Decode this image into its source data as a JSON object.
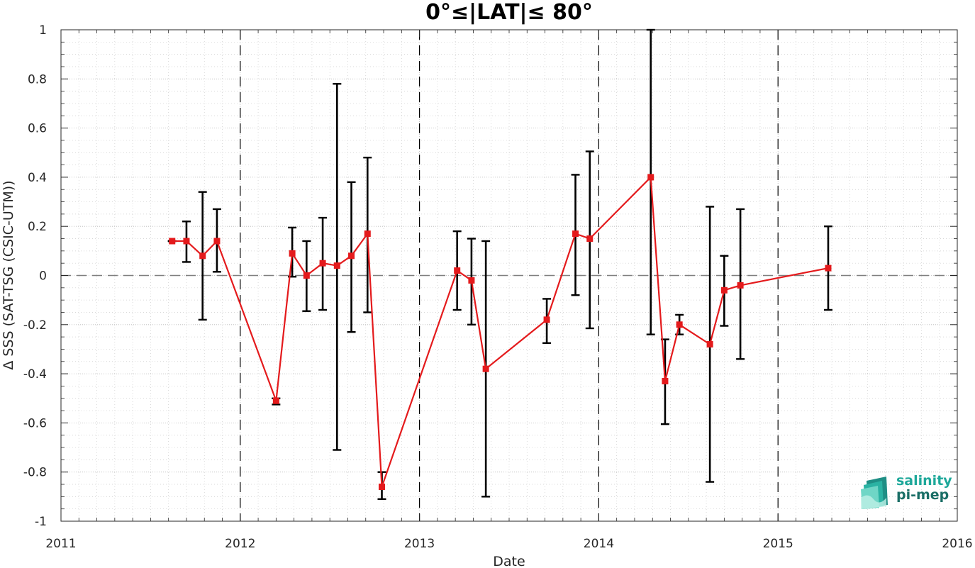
{
  "chart_data": {
    "type": "line",
    "title": "0°≤|LAT|≤ 80°",
    "xlabel": "Date",
    "ylabel": "Δ SSS (SAT-TSG (CSIC-UTM))",
    "xlim": [
      2011,
      2016
    ],
    "ylim": [
      -1,
      1
    ],
    "x_ticks": [
      "2011",
      "2012",
      "2013",
      "2014",
      "2015",
      "2016"
    ],
    "y_ticks": [
      "-1",
      "-0.8",
      "-0.6",
      "-0.4",
      "-0.2",
      "0",
      "0.2",
      "0.4",
      "0.6",
      "0.8",
      "1"
    ],
    "grid": true,
    "year_separators": [
      2012,
      2013,
      2014,
      2015
    ],
    "reference_line_y": 0,
    "series": [
      {
        "color": "#e41a1c",
        "error_bar_color": "#000000",
        "points": [
          {
            "x": 2011.62,
            "y": 0.14,
            "low": 0.14,
            "high": 0.14
          },
          {
            "x": 2011.7,
            "y": 0.14,
            "low": 0.055,
            "high": 0.22
          },
          {
            "x": 2011.79,
            "y": 0.08,
            "low": -0.18,
            "high": 0.34
          },
          {
            "x": 2011.87,
            "y": 0.14,
            "low": 0.015,
            "high": 0.27
          },
          {
            "x": 2012.2,
            "y": -0.51,
            "low": -0.525,
            "high": -0.5
          },
          {
            "x": 2012.29,
            "y": 0.09,
            "low": -0.005,
            "high": 0.195
          },
          {
            "x": 2012.37,
            "y": 0.0,
            "low": -0.145,
            "high": 0.14
          },
          {
            "x": 2012.46,
            "y": 0.05,
            "low": -0.14,
            "high": 0.235
          },
          {
            "x": 2012.54,
            "y": 0.04,
            "low": -0.71,
            "high": 0.78
          },
          {
            "x": 2012.62,
            "y": 0.08,
            "low": -0.23,
            "high": 0.38
          },
          {
            "x": 2012.71,
            "y": 0.17,
            "low": -0.15,
            "high": 0.48
          },
          {
            "x": 2012.79,
            "y": -0.86,
            "low": -0.91,
            "high": -0.8
          },
          {
            "x": 2013.21,
            "y": 0.02,
            "low": -0.14,
            "high": 0.18
          },
          {
            "x": 2013.29,
            "y": -0.02,
            "low": -0.2,
            "high": 0.15
          },
          {
            "x": 2013.37,
            "y": -0.38,
            "low": -0.9,
            "high": 0.14
          },
          {
            "x": 2013.71,
            "y": -0.18,
            "low": -0.275,
            "high": -0.095
          },
          {
            "x": 2013.87,
            "y": 0.17,
            "low": -0.08,
            "high": 0.41
          },
          {
            "x": 2013.95,
            "y": 0.15,
            "low": -0.215,
            "high": 0.505
          },
          {
            "x": 2014.29,
            "y": 0.4,
            "low": -0.24,
            "high": 1.0
          },
          {
            "x": 2014.37,
            "y": -0.43,
            "low": -0.605,
            "high": -0.26
          },
          {
            "x": 2014.45,
            "y": -0.2,
            "low": -0.24,
            "high": -0.16
          },
          {
            "x": 2014.62,
            "y": -0.28,
            "low": -0.84,
            "high": 0.28
          },
          {
            "x": 2014.7,
            "y": -0.06,
            "low": -0.205,
            "high": 0.08
          },
          {
            "x": 2014.79,
            "y": -0.04,
            "low": -0.34,
            "high": 0.27
          },
          {
            "x": 2015.28,
            "y": 0.03,
            "low": -0.14,
            "high": 0.2
          }
        ]
      }
    ]
  },
  "logo": {
    "line1": "salinity",
    "line2": "pi-mep",
    "color1": "#1ea89a",
    "color2": "#1a6e66"
  }
}
